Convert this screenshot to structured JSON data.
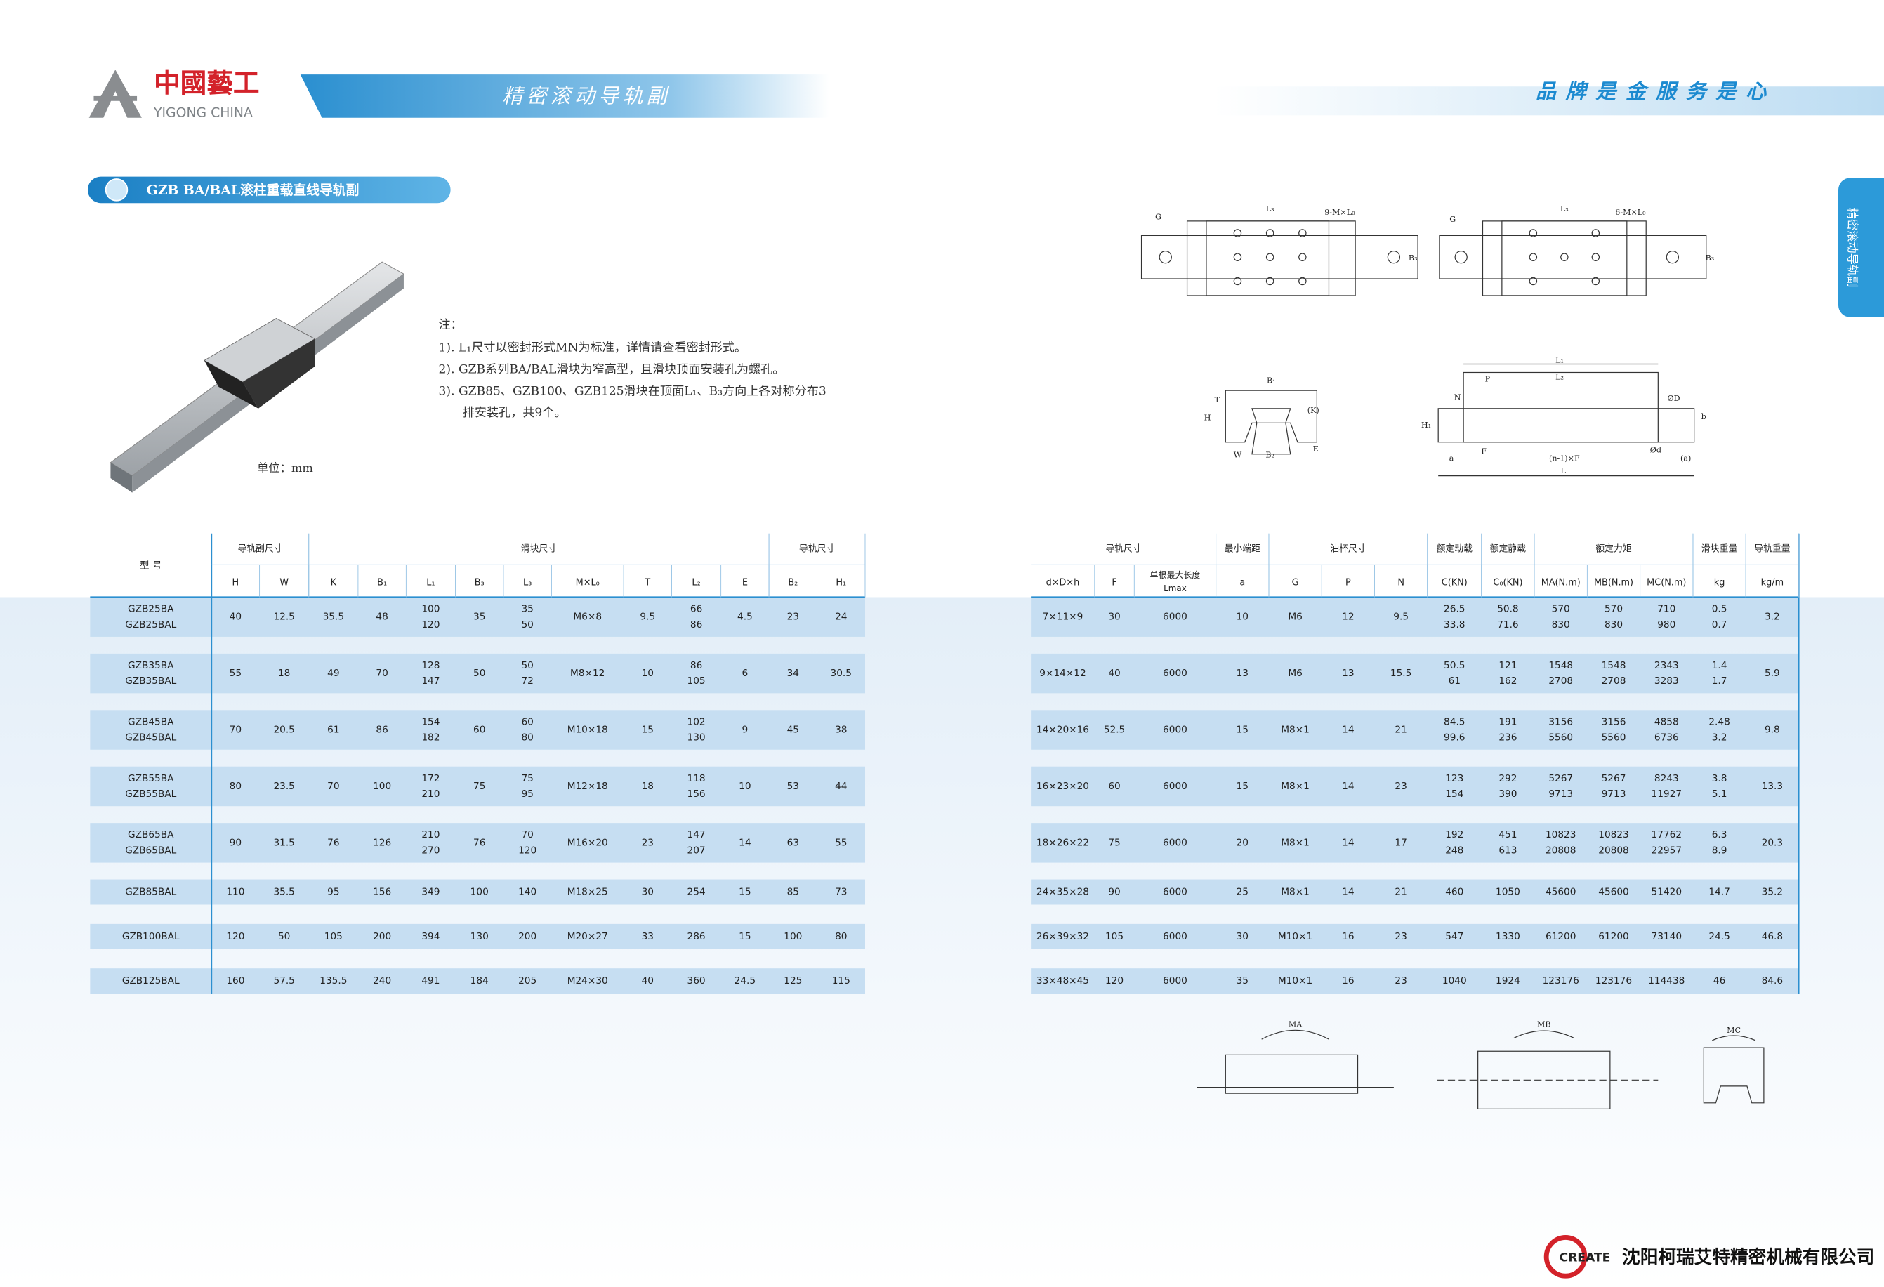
{
  "header": {
    "logo_cn": "中國藝工",
    "logo_en": "YIGONG CHINA",
    "banner": "精密滚动导轨副",
    "slogan": "品牌是金服务是心",
    "side_tab": "精密滚动导轨副"
  },
  "section_title": "GZB BA/BAL滚柱重载直线导轨副",
  "notes": [
    "注：",
    "1). L₁尺寸以密封形式MN为标准，详情请查看密封形式。",
    "2). GZB系列BA/BAL滑块为窄高型，且滑块顶面安装孔为螺孔。",
    "3). GZB85、GZB100、GZB125滑块在顶面L₁、B₃方向上各对称分布3",
    "排安装孔，共9个。"
  ],
  "unit": "单位：mm",
  "diagram_labels": [
    "G",
    "L₃",
    "9-M×L₀",
    "B₃",
    "G",
    "L₃",
    "6-M×L₀",
    "B₃",
    "B₁",
    "T",
    "H",
    "(K)",
    "E",
    "W",
    "B₂",
    "L₁",
    "L₂",
    "P",
    "N",
    "ØD",
    "b",
    "H₁",
    "F",
    "(n-1)×F",
    "Ød",
    "a",
    "(a)",
    "L",
    "MA",
    "MB",
    "MC"
  ],
  "table": {
    "model_header": "型 号",
    "groups": [
      {
        "label": "导轨副尺寸",
        "span": 2
      },
      {
        "label": "滑块尺寸",
        "span": 9
      },
      {
        "label": "导轨尺寸",
        "span": 2
      },
      {
        "label": "导轨尺寸",
        "span": 3
      },
      {
        "label": "最小端距",
        "span": 1
      },
      {
        "label": "油杯尺寸",
        "span": 3
      },
      {
        "label": "额定动载",
        "span": 1
      },
      {
        "label": "额定静载",
        "span": 1
      },
      {
        "label": "额定力矩",
        "span": 3
      },
      {
        "label": "滑块重量",
        "span": 1
      },
      {
        "label": "导轨重量",
        "span": 1
      }
    ],
    "columns": [
      "H",
      "W",
      "K",
      "B₁",
      "L₁",
      "B₃",
      "L₃",
      "M×L₀",
      "T",
      "L₂",
      "E",
      "B₂",
      "H₁",
      "d×D×h",
      "F",
      [
        "单根最大长度",
        "Lmax"
      ],
      "a",
      "G",
      "P",
      "N",
      "C(KN)",
      "C₀(KN)",
      "MA(N.m)",
      "MB(N.m)",
      "MC(N.m)",
      "kg",
      "kg/m"
    ],
    "rows": [
      [
        [
          "GZB25BA",
          "GZB25BAL"
        ],
        "40",
        "12.5",
        "35.5",
        "48",
        [
          "100",
          "120"
        ],
        "35",
        [
          "35",
          "50"
        ],
        "M6×8",
        "9.5",
        [
          "66",
          "86"
        ],
        "4.5",
        "23",
        "24",
        "7×11×9",
        "30",
        "6000",
        "10",
        "M6",
        "12",
        "9.5",
        [
          "26.5",
          "33.8"
        ],
        [
          "50.8",
          "71.6"
        ],
        [
          "570",
          "830"
        ],
        [
          "570",
          "830"
        ],
        [
          "710",
          "980"
        ],
        [
          "0.5",
          "0.7"
        ],
        "3.2"
      ],
      [
        [
          "GZB35BA",
          "GZB35BAL"
        ],
        "55",
        "18",
        "49",
        "70",
        [
          "128",
          "147"
        ],
        "50",
        [
          "50",
          "72"
        ],
        "M8×12",
        "10",
        [
          "86",
          "105"
        ],
        "6",
        "34",
        "30.5",
        "9×14×12",
        "40",
        "6000",
        "13",
        "M6",
        "13",
        "15.5",
        [
          "50.5",
          "61"
        ],
        [
          "121",
          "162"
        ],
        [
          "1548",
          "2708"
        ],
        [
          "1548",
          "2708"
        ],
        [
          "2343",
          "3283"
        ],
        [
          "1.4",
          "1.7"
        ],
        "5.9"
      ],
      [
        [
          "GZB45BA",
          "GZB45BAL"
        ],
        "70",
        "20.5",
        "61",
        "86",
        [
          "154",
          "182"
        ],
        "60",
        [
          "60",
          "80"
        ],
        "M10×18",
        "15",
        [
          "102",
          "130"
        ],
        "9",
        "45",
        "38",
        "14×20×16",
        "52.5",
        "6000",
        "15",
        "M8×1",
        "14",
        "21",
        [
          "84.5",
          "99.6"
        ],
        [
          "191",
          "236"
        ],
        [
          "3156",
          "5560"
        ],
        [
          "3156",
          "5560"
        ],
        [
          "4858",
          "6736"
        ],
        [
          "2.48",
          "3.2"
        ],
        "9.8"
      ],
      [
        [
          "GZB55BA",
          "GZB55BAL"
        ],
        "80",
        "23.5",
        "70",
        "100",
        [
          "172",
          "210"
        ],
        "75",
        [
          "75",
          "95"
        ],
        "M12×18",
        "18",
        [
          "118",
          "156"
        ],
        "10",
        "53",
        "44",
        "16×23×20",
        "60",
        "6000",
        "15",
        "M8×1",
        "14",
        "23",
        [
          "123",
          "154"
        ],
        [
          "292",
          "390"
        ],
        [
          "5267",
          "9713"
        ],
        [
          "5267",
          "9713"
        ],
        [
          "8243",
          "11927"
        ],
        [
          "3.8",
          "5.1"
        ],
        "13.3"
      ],
      [
        [
          "GZB65BA",
          "GZB65BAL"
        ],
        "90",
        "31.5",
        "76",
        "126",
        [
          "210",
          "270"
        ],
        "76",
        [
          "70",
          "120"
        ],
        "M16×20",
        "23",
        [
          "147",
          "207"
        ],
        "14",
        "63",
        "55",
        "18×26×22",
        "75",
        "6000",
        "20",
        "M8×1",
        "14",
        "17",
        [
          "192",
          "248"
        ],
        [
          "451",
          "613"
        ],
        [
          "10823",
          "20808"
        ],
        [
          "10823",
          "20808"
        ],
        [
          "17762",
          "22957"
        ],
        [
          "6.3",
          "8.9"
        ],
        "20.3"
      ],
      [
        "GZB85BAL",
        "110",
        "35.5",
        "95",
        "156",
        "349",
        "100",
        "140",
        "M18×25",
        "30",
        "254",
        "15",
        "85",
        "73",
        "24×35×28",
        "90",
        "6000",
        "25",
        "M8×1",
        "14",
        "21",
        "460",
        "1050",
        "45600",
        "45600",
        "51420",
        "14.7",
        "35.2"
      ],
      [
        "GZB100BAL",
        "120",
        "50",
        "105",
        "200",
        "394",
        "130",
        "200",
        "M20×27",
        "33",
        "286",
        "15",
        "100",
        "80",
        "26×39×32",
        "105",
        "6000",
        "30",
        "M10×1",
        "16",
        "23",
        "547",
        "1330",
        "61200",
        "61200",
        "73140",
        "24.5",
        "46.8"
      ],
      [
        "GZB125BAL",
        "160",
        "57.5",
        "135.5",
        "240",
        "491",
        "184",
        "205",
        "M24×30",
        "40",
        "360",
        "24.5",
        "125",
        "115",
        "33×48×45",
        "120",
        "6000",
        "35",
        "M10×1",
        "16",
        "23",
        "1040",
        "1924",
        "123176",
        "123176",
        "114438",
        "46",
        "84.6"
      ]
    ]
  },
  "footer": {
    "logo": "CREATE",
    "company": "沈阳柯瑞艾特精密机械有限公司"
  }
}
